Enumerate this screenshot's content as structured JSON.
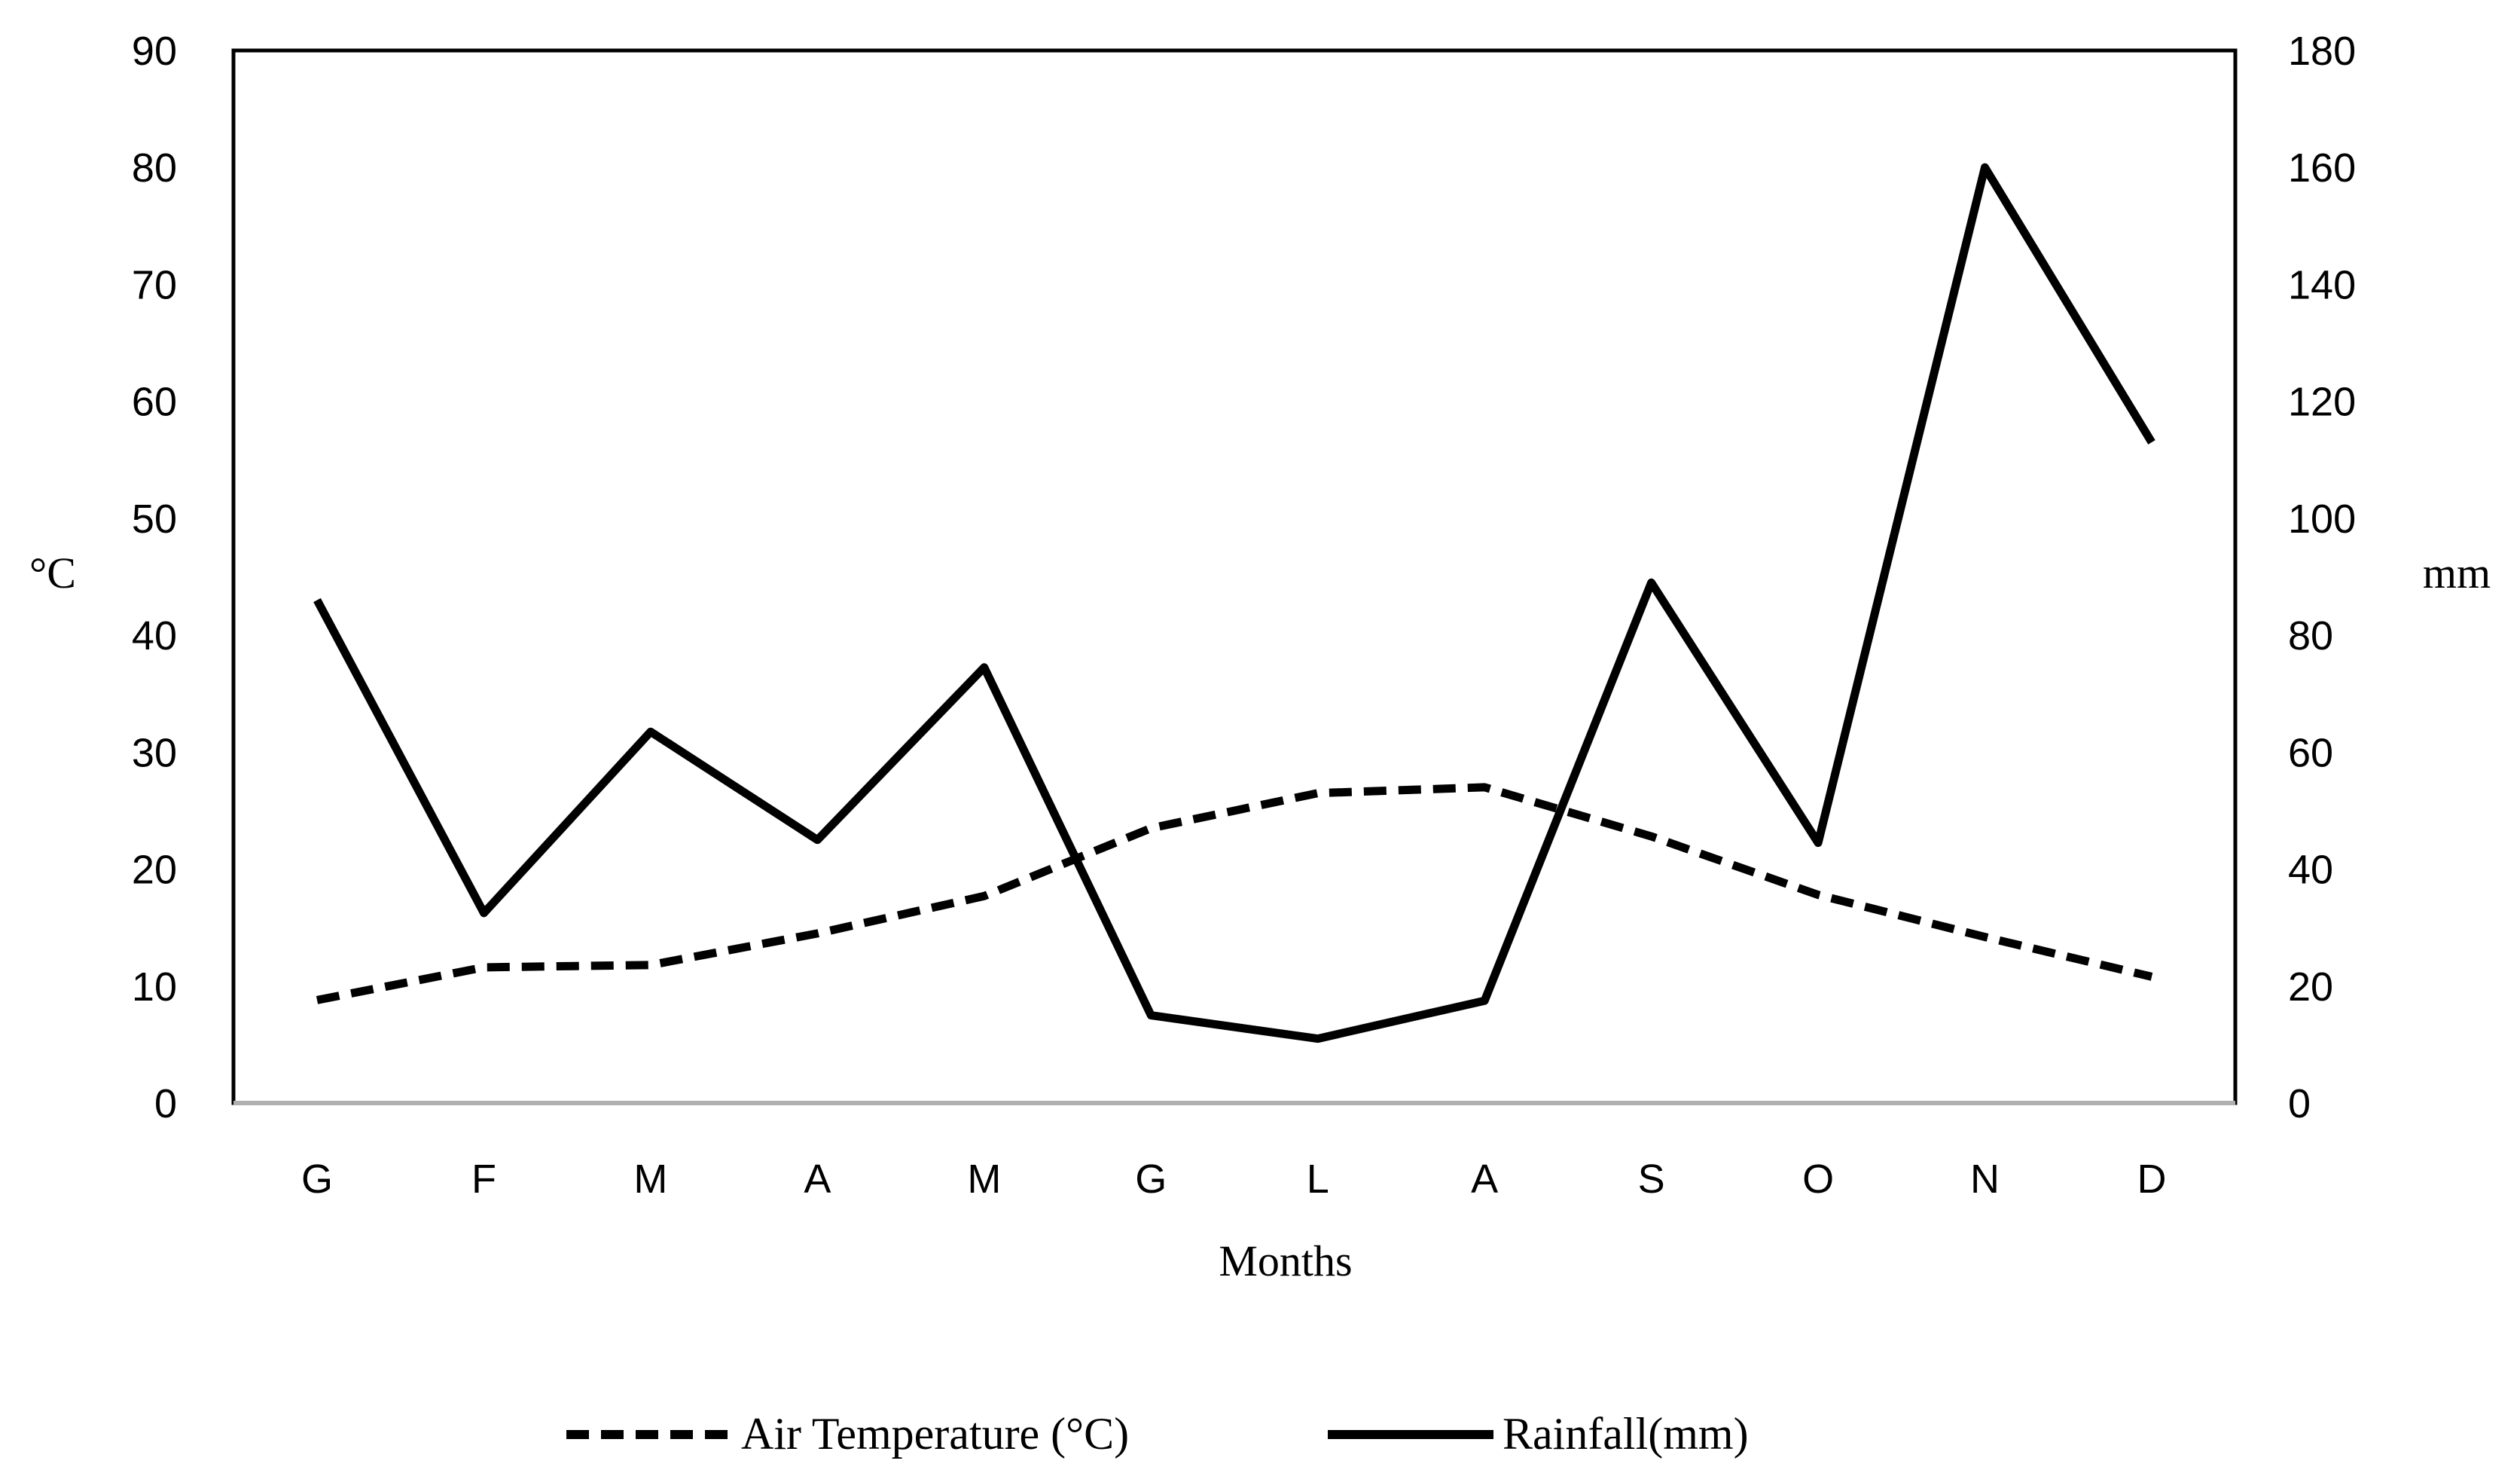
{
  "chart_data": {
    "type": "line",
    "categories": [
      "G",
      "F",
      "M",
      "A",
      "M",
      "G",
      "L",
      "A",
      "S",
      "O",
      "N",
      "D"
    ],
    "xlabel": "Months",
    "ylabel_left": "°C",
    "ylabel_right": "mm",
    "y_left": {
      "min": 0,
      "max": 90,
      "step": 10,
      "ticks": [
        "0",
        "10",
        "20",
        "30",
        "40",
        "50",
        "60",
        "70",
        "80",
        "90"
      ]
    },
    "y_right": {
      "min": 0,
      "max": 180,
      "step": 20,
      "ticks": [
        "0",
        "20",
        "40",
        "60",
        "80",
        "100",
        "120",
        "140",
        "160",
        "180"
      ]
    },
    "series": [
      {
        "name": "Air Temperature (°C)",
        "axis": "left",
        "style": "dashed",
        "values": [
          8.8,
          11.6,
          11.8,
          14.5,
          17.7,
          23.5,
          26.5,
          27.0,
          22.8,
          17.8,
          14.2,
          10.8
        ]
      },
      {
        "name": "Rainfall(mm)",
        "axis": "right",
        "style": "solid",
        "values": [
          86,
          32.5,
          63.5,
          45,
          74.5,
          15,
          11,
          17.5,
          89,
          44.5,
          160,
          113
        ]
      }
    ],
    "legend": {
      "position": "bottom",
      "labels": [
        "Air Temperature (°C)",
        "Rainfall(mm)"
      ]
    },
    "grid": false,
    "colors": {
      "line": "#000000",
      "axis": "#000000"
    }
  }
}
